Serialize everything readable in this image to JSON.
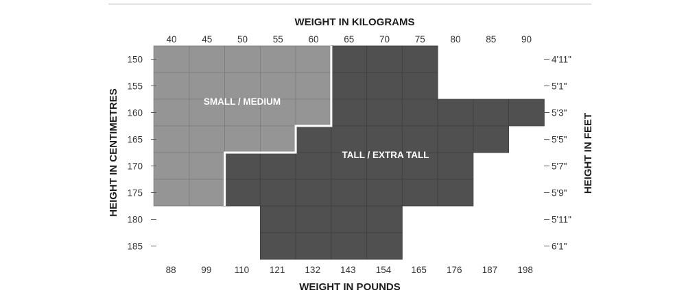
{
  "chart_data": {
    "type": "heatmap",
    "title": "",
    "x_top_label": "WEIGHT IN KILOGRAMS",
    "x_bottom_label": "WEIGHT IN POUNDS",
    "y_left_label": "HEIGHT IN CENTIMETRES",
    "y_right_label": "HEIGHT IN FEET",
    "kg_ticks": [
      40,
      45,
      50,
      55,
      60,
      65,
      70,
      75,
      80,
      85,
      90
    ],
    "lb_ticks": [
      88,
      99,
      110,
      121,
      132,
      143,
      154,
      165,
      176,
      187,
      198
    ],
    "cm_ticks": [
      150,
      155,
      160,
      165,
      170,
      175,
      180,
      185
    ],
    "ft_ticks": [
      "4'11\"",
      "5'1\"",
      "5'3\"",
      "5'5\"",
      "5'7\"",
      "5'9\"",
      "5'11\"",
      "6'1\""
    ],
    "xlim_kg": [
      40,
      92.5
    ],
    "ylim_cm": [
      147.5,
      187.5
    ],
    "regions": [
      {
        "name": "SMALL / MEDIUM",
        "color": "#959595",
        "cells_kg_range_by_cm_row": [
          {
            "cm": 150,
            "kg_from": 37.5,
            "kg_to": 62.5
          },
          {
            "cm": 155,
            "kg_from": 37.5,
            "kg_to": 62.5
          },
          {
            "cm": 160,
            "kg_from": 37.5,
            "kg_to": 62.5
          },
          {
            "cm": 165,
            "kg_from": 37.5,
            "kg_to": 57.5
          },
          {
            "cm": 170,
            "kg_from": 37.5,
            "kg_to": 47.5
          },
          {
            "cm": 175,
            "kg_from": 37.5,
            "kg_to": 47.5
          }
        ]
      },
      {
        "name": "TALL / EXTRA TALL",
        "color": "#505050",
        "cells_kg_range_by_cm_row": [
          {
            "cm": 150,
            "kg_from": 62.5,
            "kg_to": 77.5
          },
          {
            "cm": 155,
            "kg_from": 62.5,
            "kg_to": 77.5
          },
          {
            "cm": 160,
            "kg_from": 62.5,
            "kg_to": 92.5
          },
          {
            "cm": 165,
            "kg_from": 57.5,
            "kg_to": 87.5
          },
          {
            "cm": 170,
            "kg_from": 47.5,
            "kg_to": 82.5
          },
          {
            "cm": 175,
            "kg_from": 47.5,
            "kg_to": 82.5
          },
          {
            "cm": 180,
            "kg_from": 52.5,
            "kg_to": 72.5
          },
          {
            "cm": 185,
            "kg_from": 52.5,
            "kg_to": 72.5
          }
        ]
      }
    ],
    "grid": true,
    "legend": "none"
  }
}
